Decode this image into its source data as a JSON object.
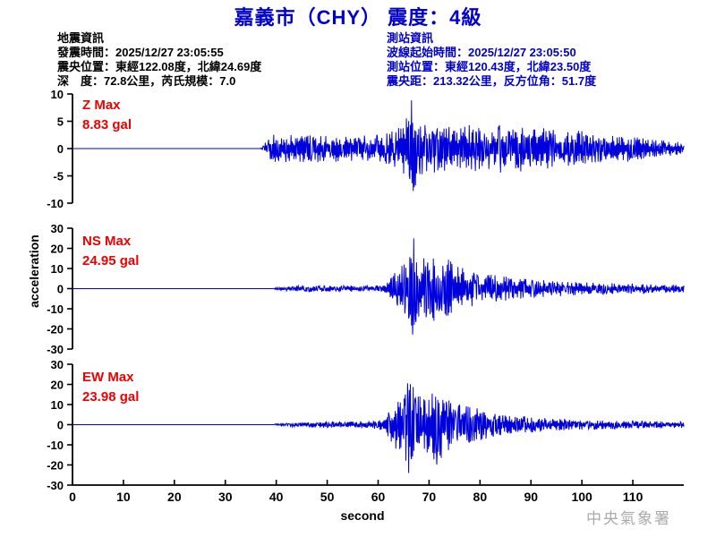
{
  "title": "嘉義市（CHY） 震度：4級",
  "event_info": {
    "heading": "地震資訊",
    "lines": {
      "origin_time": "發震時間：2025/12/27 23:05:55",
      "epicenter": "震央位置：東經122.08度，北緯24.69度",
      "depth_magnitude": "深　度：72.8公里，芮氏規模：7.0"
    }
  },
  "station_info": {
    "heading": "測站資訊",
    "lines": {
      "wave_start_time": "波線起始時間：2025/12/27 23:05:50",
      "station_location": "測站位置：東經120.43度，北緯23.50度",
      "distance_azimuth": "震央距：213.32公里，反方位角：51.7度"
    }
  },
  "watermark": "中央氣象署",
  "colors": {
    "title_blue": "#0000cd",
    "trace_blue": "#0000dd",
    "max_red": "#ee0000",
    "axis_black": "#000000",
    "watermark_gray": "#aaaaaa"
  },
  "chart_data": {
    "type": "line",
    "xlabel": "second",
    "ylabel": "acceleration",
    "x_range": [
      0,
      120
    ],
    "x_ticks": [
      0,
      10,
      20,
      30,
      40,
      50,
      60,
      70,
      80,
      90,
      100,
      110
    ],
    "grid": false,
    "panels": [
      {
        "id": "Z",
        "max_label": "Z Max",
        "max_text": "8.83 gal",
        "max_gal": 8.83,
        "peak_time": 66.5,
        "peak_sign": 1,
        "ylim": [
          -10,
          10
        ],
        "yticks": [
          10,
          5,
          0,
          -5,
          -10
        ],
        "onset_time": 37.2,
        "envelope": [
          [
            0,
            0
          ],
          [
            36.8,
            0
          ],
          [
            37.2,
            0.3
          ],
          [
            38,
            1.8
          ],
          [
            39,
            2.6
          ],
          [
            42,
            2.8
          ],
          [
            46,
            2.4
          ],
          [
            50,
            2.6
          ],
          [
            54,
            2.2
          ],
          [
            58,
            2.4
          ],
          [
            61,
            2.6
          ],
          [
            63,
            3.2
          ],
          [
            64.8,
            4.2
          ],
          [
            66.1,
            6.5
          ],
          [
            66.5,
            8.83
          ],
          [
            67.3,
            6.8
          ],
          [
            68.5,
            5.2
          ],
          [
            70,
            4.6
          ],
          [
            72,
            4.2
          ],
          [
            75,
            3.8
          ],
          [
            78,
            4.4
          ],
          [
            81,
            3.6
          ],
          [
            84,
            4.6
          ],
          [
            86,
            3.6
          ],
          [
            88,
            4.2
          ],
          [
            90,
            3.4
          ],
          [
            93,
            3.8
          ],
          [
            96,
            3.0
          ],
          [
            99,
            3.4
          ],
          [
            102,
            2.8
          ],
          [
            105,
            2.4
          ],
          [
            108,
            2.6
          ],
          [
            111,
            2.0
          ],
          [
            114,
            1.6
          ],
          [
            117,
            1.4
          ],
          [
            120,
            1.1
          ]
        ]
      },
      {
        "id": "NS",
        "max_label": "NS Max",
        "max_text": "24.95 gal",
        "max_gal": 24.95,
        "peak_time": 67.0,
        "peak_sign": 1,
        "ylim": [
          -30,
          30
        ],
        "yticks": [
          30,
          20,
          10,
          0,
          -10,
          -20,
          -30
        ],
        "onset_time": 39.8,
        "envelope": [
          [
            0,
            0
          ],
          [
            39.3,
            0
          ],
          [
            39.8,
            0.4
          ],
          [
            41,
            1.0
          ],
          [
            44,
            1.4
          ],
          [
            48,
            1.6
          ],
          [
            52,
            1.4
          ],
          [
            56,
            1.6
          ],
          [
            59,
            1.4
          ],
          [
            61,
            1.8
          ],
          [
            62,
            3.5
          ],
          [
            63,
            7
          ],
          [
            64,
            10
          ],
          [
            65,
            13
          ],
          [
            66,
            16
          ],
          [
            67,
            24.95
          ],
          [
            68,
            17
          ],
          [
            69.5,
            14
          ],
          [
            71,
            16
          ],
          [
            72.5,
            13
          ],
          [
            74,
            15
          ],
          [
            76,
            11
          ],
          [
            78,
            9
          ],
          [
            80,
            8
          ],
          [
            82.5,
            7
          ],
          [
            85,
            6
          ],
          [
            88,
            5
          ],
          [
            91,
            4.5
          ],
          [
            94,
            4
          ],
          [
            97,
            3.5
          ],
          [
            100,
            3.2
          ],
          [
            104,
            2.8
          ],
          [
            108,
            2.6
          ],
          [
            112,
            2.4
          ],
          [
            116,
            2.2
          ],
          [
            120,
            1.8
          ]
        ]
      },
      {
        "id": "EW",
        "max_label": "EW Max",
        "max_text": "23.98 gal",
        "max_gal": 23.98,
        "peak_time": 66.0,
        "peak_sign": -1,
        "ylim": [
          -30,
          30
        ],
        "yticks": [
          30,
          20,
          10,
          0,
          -10,
          -20,
          -30
        ],
        "onset_time": 40.0,
        "envelope": [
          [
            0,
            0
          ],
          [
            39.3,
            0
          ],
          [
            40,
            0.5
          ],
          [
            43,
            1.0
          ],
          [
            47,
            1.4
          ],
          [
            51,
            1.6
          ],
          [
            55,
            1.5
          ],
          [
            58,
            1.8
          ],
          [
            60,
            2.2
          ],
          [
            61.5,
            4
          ],
          [
            62.5,
            8
          ],
          [
            63.5,
            12
          ],
          [
            65,
            17
          ],
          [
            66,
            23.98
          ],
          [
            67.5,
            15
          ],
          [
            69,
            13
          ],
          [
            70.5,
            19
          ],
          [
            72,
            21
          ],
          [
            73.5,
            14
          ],
          [
            75,
            12
          ],
          [
            77,
            10
          ],
          [
            79,
            8.5
          ],
          [
            81,
            7
          ],
          [
            83,
            6
          ],
          [
            85,
            5
          ],
          [
            87,
            4.5
          ],
          [
            90,
            3.8
          ],
          [
            93,
            3.2
          ],
          [
            96,
            2.8
          ],
          [
            100,
            2.4
          ],
          [
            104,
            2.2
          ],
          [
            108,
            2.0
          ],
          [
            112,
            1.8
          ],
          [
            116,
            1.7
          ],
          [
            120,
            1.5
          ]
        ]
      }
    ]
  }
}
